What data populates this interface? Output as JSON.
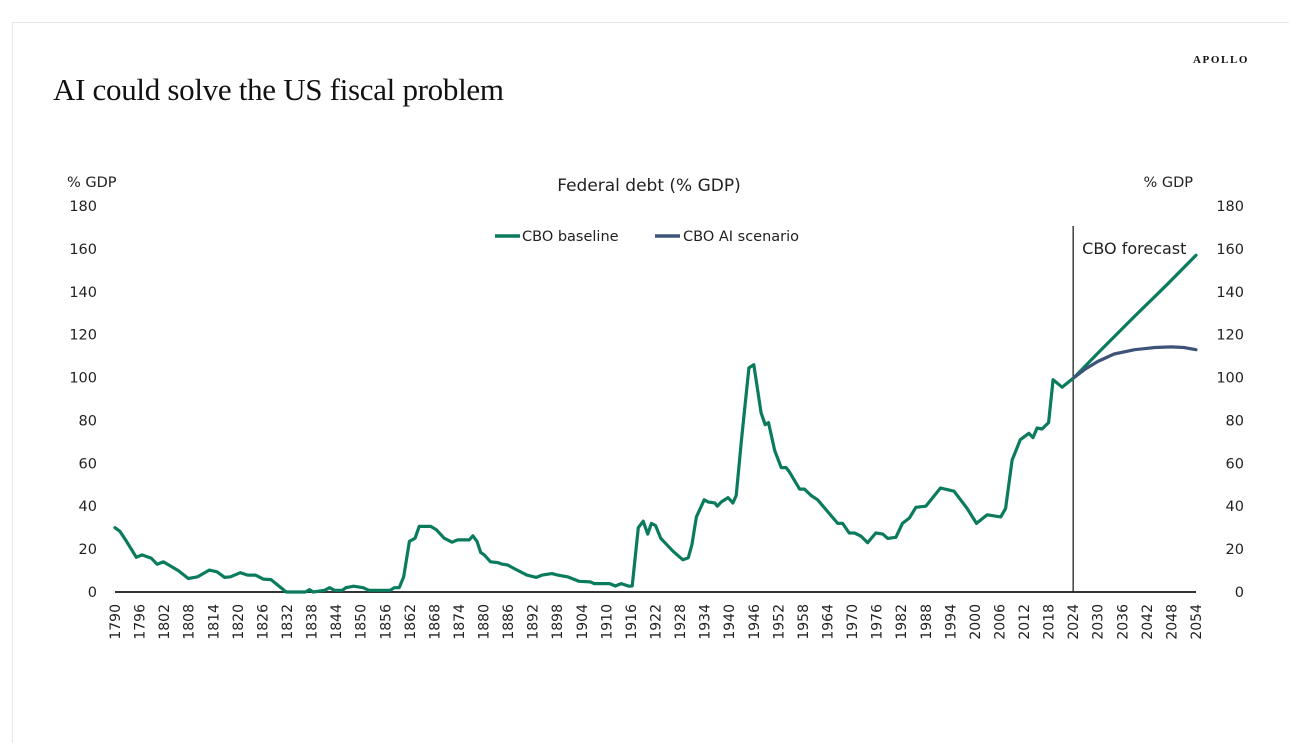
{
  "header": {
    "title": "AI could solve the US fiscal problem",
    "logo": "APOLLO"
  },
  "colors": {
    "baseline": "#0b7b5d",
    "ai": "#3d5378",
    "axis": "#333333"
  },
  "chart_data": {
    "type": "line",
    "title": "Federal debt (% GDP)",
    "ylabel_left": "% GDP",
    "ylabel_right": "% GDP",
    "xlabel": "",
    "xlim": [
      1790,
      2054
    ],
    "ylim": [
      0,
      180
    ],
    "yticks": [
      0,
      20,
      40,
      60,
      80,
      100,
      120,
      140,
      160,
      180
    ],
    "xtick_start": 1790,
    "xtick_step": 6,
    "xtick_end": 2054,
    "annotation": {
      "text": "CBO forecast",
      "x": 2024
    },
    "legend": {
      "placement": "top-center",
      "entries": [
        "CBO baseline",
        "CBO AI scenario"
      ]
    },
    "series": [
      {
        "name": "CBO baseline",
        "points": [
          [
            1790,
            30
          ],
          [
            1791.2,
            28.3
          ],
          [
            1792.8,
            23.6
          ],
          [
            1795.2,
            16.2
          ],
          [
            1796.6,
            17.3
          ],
          [
            1798.9,
            15.7
          ],
          [
            1800.3,
            12.9
          ],
          [
            1801.8,
            14.1
          ],
          [
            1803.6,
            12.1
          ],
          [
            1805.5,
            9.9
          ],
          [
            1807.9,
            6.3
          ],
          [
            1810.2,
            7.1
          ],
          [
            1813,
            10.2
          ],
          [
            1814.9,
            9.4
          ],
          [
            1816.8,
            6.8
          ],
          [
            1818.2,
            7.1
          ],
          [
            1820.6,
            9
          ],
          [
            1822.4,
            7.9
          ],
          [
            1824.3,
            7.9
          ],
          [
            1826.2,
            6
          ],
          [
            1828.1,
            5.8
          ],
          [
            1831.8,
            0
          ],
          [
            1836.5,
            0
          ],
          [
            1837.5,
            1.1
          ],
          [
            1838.4,
            0
          ],
          [
            1841.2,
            0.8
          ],
          [
            1842.4,
            2
          ],
          [
            1843.6,
            0.8
          ],
          [
            1845.5,
            0.8
          ],
          [
            1846.4,
            2
          ],
          [
            1848.3,
            2.7
          ],
          [
            1850.6,
            2
          ],
          [
            1852,
            0.8
          ],
          [
            1857.2,
            0.8
          ],
          [
            1858.2,
            2
          ],
          [
            1859.4,
            2
          ],
          [
            1860.5,
            7.1
          ],
          [
            1861.9,
            23.6
          ],
          [
            1863.3,
            25.1
          ],
          [
            1864.3,
            30.6
          ],
          [
            1867.1,
            30.6
          ],
          [
            1868.5,
            29
          ],
          [
            1870.4,
            25.1
          ],
          [
            1872.3,
            23.2
          ],
          [
            1873.7,
            24.3
          ],
          [
            1876.5,
            24.3
          ],
          [
            1877.4,
            26.2
          ],
          [
            1878.4,
            23.6
          ],
          [
            1879.3,
            18.4
          ],
          [
            1880.2,
            17.3
          ],
          [
            1881.7,
            14.1
          ],
          [
            1883.5,
            13.7
          ],
          [
            1884.5,
            13
          ],
          [
            1885.9,
            12.6
          ],
          [
            1888.2,
            10.2
          ],
          [
            1890.6,
            7.9
          ],
          [
            1892.9,
            6.8
          ],
          [
            1894.3,
            7.9
          ],
          [
            1896.7,
            8.6
          ],
          [
            1898.1,
            7.9
          ],
          [
            1900.5,
            7.1
          ],
          [
            1903.3,
            5
          ],
          [
            1906.1,
            4.7
          ],
          [
            1907,
            3.9
          ],
          [
            1910.8,
            3.9
          ],
          [
            1912.2,
            2.8
          ],
          [
            1913.6,
            3.9
          ],
          [
            1915.5,
            2.7
          ],
          [
            1916.3,
            2.8
          ],
          [
            1917.8,
            30
          ],
          [
            1919,
            33
          ],
          [
            1920.1,
            27
          ],
          [
            1921,
            32
          ],
          [
            1922,
            31
          ],
          [
            1923.3,
            25
          ],
          [
            1924.3,
            23
          ],
          [
            1926.3,
            19
          ],
          [
            1928.7,
            15
          ],
          [
            1930,
            16
          ],
          [
            1930.9,
            22
          ],
          [
            1932,
            35
          ],
          [
            1933.9,
            43
          ],
          [
            1934.8,
            42
          ],
          [
            1936.5,
            41.5
          ],
          [
            1937.1,
            40
          ],
          [
            1938.1,
            42
          ],
          [
            1939.7,
            44
          ],
          [
            1940.9,
            41.5
          ],
          [
            1941.7,
            45
          ],
          [
            1943,
            71
          ],
          [
            1944.8,
            104.5
          ],
          [
            1946,
            106
          ],
          [
            1947.8,
            83.5
          ],
          [
            1948.8,
            78
          ],
          [
            1949.6,
            79
          ],
          [
            1951.1,
            66
          ],
          [
            1952.7,
            58
          ],
          [
            1953.9,
            58
          ],
          [
            1954.7,
            56
          ],
          [
            1957.2,
            48
          ],
          [
            1958.4,
            48
          ],
          [
            1960,
            45
          ],
          [
            1961.6,
            43
          ],
          [
            1966.5,
            32
          ],
          [
            1967.7,
            32
          ],
          [
            1969.3,
            27.5
          ],
          [
            1970.6,
            27.5
          ],
          [
            1972.2,
            26
          ],
          [
            1973.8,
            23
          ],
          [
            1975.8,
            27.5
          ],
          [
            1977.5,
            27
          ],
          [
            1978.7,
            25
          ],
          [
            1980.7,
            25.5
          ],
          [
            1982.3,
            32
          ],
          [
            1984,
            34.5
          ],
          [
            1985.6,
            39.5
          ],
          [
            1988,
            40
          ],
          [
            1991.6,
            48.5
          ],
          [
            1994.9,
            47
          ],
          [
            1998.1,
            39
          ],
          [
            2000.4,
            32
          ],
          [
            2003,
            36
          ],
          [
            2006.3,
            35
          ],
          [
            2007.5,
            39
          ],
          [
            2009.1,
            61.5
          ],
          [
            2011.1,
            71
          ],
          [
            2013.2,
            74
          ],
          [
            2014.2,
            72
          ],
          [
            2015.2,
            76.5
          ],
          [
            2016.4,
            76
          ],
          [
            2018,
            79
          ],
          [
            2019.1,
            99
          ],
          [
            2021.3,
            95.5
          ],
          [
            2024.2,
            100
          ],
          [
            2030.6,
            112.5
          ],
          [
            2038.7,
            128
          ],
          [
            2047,
            143.5
          ],
          [
            2054,
            157
          ]
        ]
      },
      {
        "name": "CBO AI scenario",
        "points": [
          [
            2024.2,
            100
          ],
          [
            2027,
            104
          ],
          [
            2030,
            107.5
          ],
          [
            2034,
            111
          ],
          [
            2039,
            113
          ],
          [
            2044,
            114
          ],
          [
            2048,
            114.3
          ],
          [
            2051,
            114
          ],
          [
            2054,
            113
          ]
        ]
      }
    ]
  }
}
